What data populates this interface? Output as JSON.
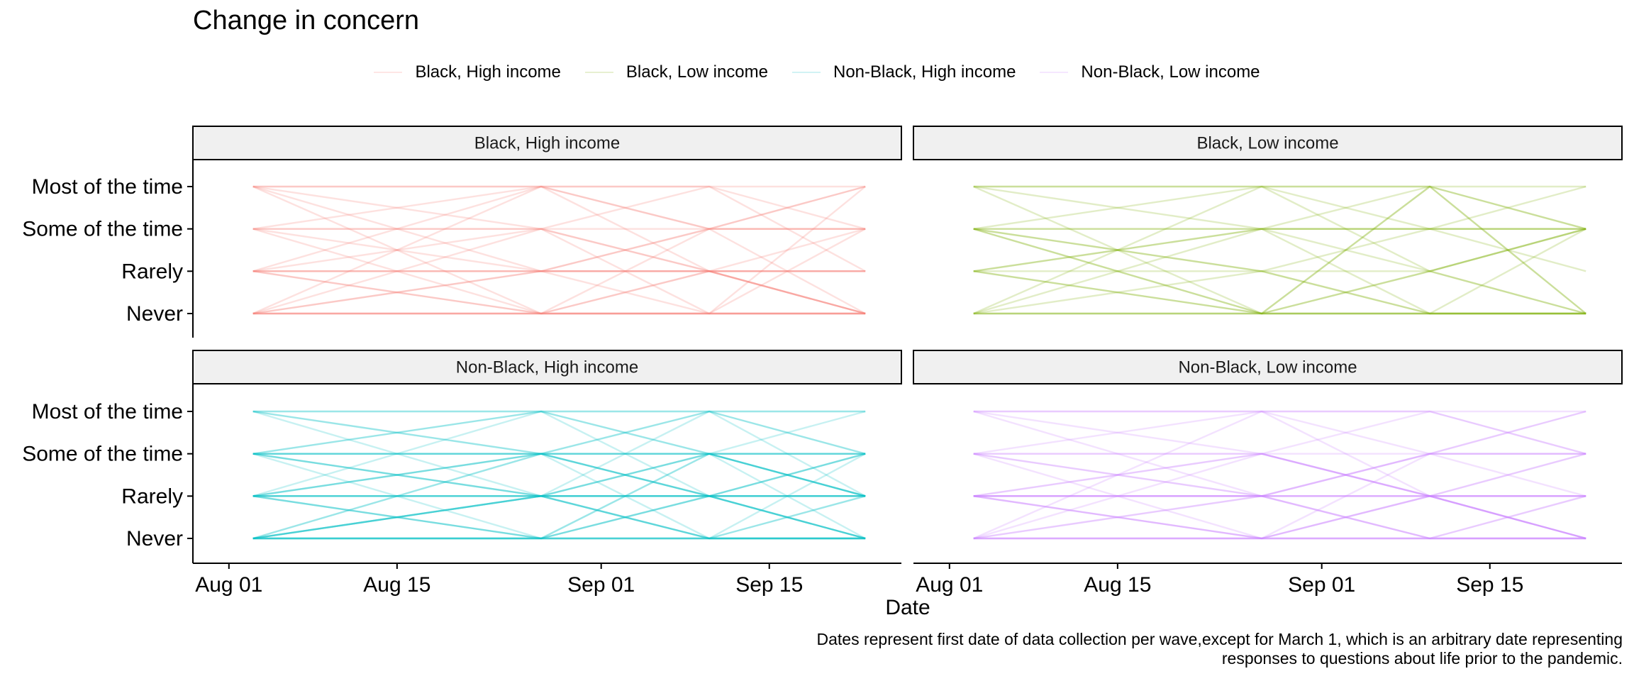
{
  "title": "Change in concern",
  "xlabel": "Date",
  "caption": "Dates represent first date of data collection per wave,except for March 1, which is an arbitrary date representing responses to questions about life prior to the pandemic.",
  "legend": [
    {
      "label": "Black, High income",
      "color": "#F8766D"
    },
    {
      "label": "Black, Low income",
      "color": "#7CAE00"
    },
    {
      "label": "Non-Black, High income",
      "color": "#00BFC4"
    },
    {
      "label": "Non-Black, Low income",
      "color": "#C77CFF"
    }
  ],
  "chart_data": {
    "type": "line",
    "facet_layout": "2x2",
    "xlabel": "Date",
    "ylabel": "",
    "x_ticks": [
      "Aug 01",
      "Aug 15",
      "Sep 01",
      "Sep 15"
    ],
    "x_tick_dates": [
      "2020-08-01",
      "2020-08-15",
      "2020-09-01",
      "2020-09-15"
    ],
    "xlim": [
      "2020-07-29",
      "2020-09-26"
    ],
    "waves": [
      "2020-08-03",
      "2020-08-27",
      "2020-09-10",
      "2020-09-23"
    ],
    "y_categories": [
      "Never",
      "Rarely",
      "Some of the time",
      "Most of the time"
    ],
    "legend_position": "top",
    "grid": false,
    "panels": [
      {
        "name": "Black, High income",
        "color": "#F8766D",
        "trajectories": [
          [
            0,
            0,
            0,
            0
          ],
          [
            0,
            0,
            0,
            0
          ],
          [
            0,
            0,
            0,
            0
          ],
          [
            1,
            1,
            1,
            1
          ],
          [
            1,
            1,
            1,
            1
          ],
          [
            2,
            2,
            2,
            2
          ],
          [
            3,
            3,
            3,
            3
          ],
          [
            1,
            0,
            1,
            0
          ],
          [
            1,
            0,
            1,
            0
          ],
          [
            0,
            3,
            3,
            2
          ],
          [
            3,
            2,
            0,
            0
          ],
          [
            1,
            1,
            2,
            3
          ],
          [
            2,
            3,
            1,
            0
          ],
          [
            0,
            1,
            2,
            3
          ],
          [
            3,
            0,
            0,
            0
          ],
          [
            1,
            3,
            2,
            0
          ],
          [
            0,
            1,
            1,
            1
          ],
          [
            2,
            0,
            0,
            2
          ],
          [
            3,
            3,
            2,
            2
          ],
          [
            0,
            2,
            3,
            1
          ],
          [
            2,
            1,
            0,
            3
          ],
          [
            1,
            2,
            1,
            0
          ],
          [
            3,
            1,
            1,
            2
          ],
          [
            0,
            0,
            2,
            2
          ],
          [
            2,
            2,
            1,
            1
          ]
        ]
      },
      {
        "name": "Black, Low income",
        "color": "#7CAE00",
        "trajectories": [
          [
            0,
            0,
            0,
            0
          ],
          [
            0,
            0,
            0,
            0
          ],
          [
            0,
            0,
            0,
            0
          ],
          [
            2,
            2,
            2,
            2
          ],
          [
            2,
            2,
            2,
            2
          ],
          [
            1,
            0,
            1,
            2
          ],
          [
            1,
            0,
            3,
            2
          ],
          [
            3,
            3,
            3,
            3
          ],
          [
            2,
            1,
            0,
            0
          ],
          [
            2,
            3,
            3,
            0
          ],
          [
            3,
            0,
            1,
            2
          ],
          [
            1,
            1,
            0,
            2
          ],
          [
            0,
            1,
            1,
            2
          ],
          [
            2,
            0,
            0,
            0
          ],
          [
            1,
            2,
            3,
            0
          ],
          [
            3,
            2,
            1,
            0
          ],
          [
            0,
            2,
            2,
            1
          ],
          [
            1,
            2,
            0,
            0
          ],
          [
            2,
            0,
            3,
            2
          ],
          [
            3,
            3,
            2,
            2
          ],
          [
            0,
            3,
            1,
            0
          ],
          [
            2,
            1,
            2,
            3
          ]
        ]
      },
      {
        "name": "Non-Black, High income",
        "color": "#00BFC4",
        "trajectories": [
          [
            0,
            0,
            0,
            0
          ],
          [
            0,
            0,
            0,
            0
          ],
          [
            0,
            0,
            0,
            0
          ],
          [
            0,
            0,
            0,
            0
          ],
          [
            1,
            1,
            1,
            1
          ],
          [
            1,
            1,
            1,
            1
          ],
          [
            1,
            1,
            1,
            1
          ],
          [
            2,
            2,
            2,
            2
          ],
          [
            2,
            2,
            2,
            2
          ],
          [
            3,
            3,
            3,
            3
          ],
          [
            1,
            0,
            1,
            0
          ],
          [
            0,
            1,
            2,
            1
          ],
          [
            2,
            1,
            0,
            0
          ],
          [
            1,
            2,
            1,
            2
          ],
          [
            0,
            0,
            1,
            1
          ],
          [
            2,
            2,
            1,
            1
          ],
          [
            1,
            0,
            0,
            1
          ],
          [
            0,
            1,
            1,
            2
          ],
          [
            2,
            1,
            2,
            1
          ],
          [
            3,
            2,
            1,
            1
          ],
          [
            0,
            2,
            3,
            2
          ],
          [
            1,
            1,
            2,
            2
          ],
          [
            2,
            0,
            1,
            0
          ],
          [
            1,
            3,
            2,
            1
          ],
          [
            0,
            1,
            0,
            0
          ],
          [
            2,
            3,
            2,
            2
          ],
          [
            3,
            3,
            1,
            0
          ],
          [
            1,
            2,
            0,
            2
          ],
          [
            0,
            1,
            3,
            1
          ],
          [
            3,
            1,
            0,
            0
          ],
          [
            2,
            2,
            3,
            3
          ],
          [
            1,
            0,
            2,
            1
          ],
          [
            0,
            2,
            1,
            0
          ],
          [
            2,
            1,
            1,
            2
          ],
          [
            1,
            1,
            0,
            1
          ],
          [
            3,
            2,
            2,
            3
          ],
          [
            0,
            0,
            2,
            1
          ],
          [
            2,
            3,
            3,
            2
          ],
          [
            1,
            2,
            2,
            0
          ],
          [
            0,
            1,
            1,
            0
          ]
        ]
      },
      {
        "name": "Non-Black, Low income",
        "color": "#C77CFF",
        "trajectories": [
          [
            0,
            0,
            0,
            0
          ],
          [
            0,
            0,
            0,
            0
          ],
          [
            0,
            0,
            0,
            0
          ],
          [
            1,
            1,
            1,
            1
          ],
          [
            1,
            1,
            1,
            1
          ],
          [
            1,
            1,
            1,
            1
          ],
          [
            2,
            2,
            2,
            2
          ],
          [
            3,
            3,
            3,
            3
          ],
          [
            1,
            0,
            1,
            0
          ],
          [
            0,
            1,
            1,
            0
          ],
          [
            1,
            2,
            1,
            1
          ],
          [
            0,
            0,
            1,
            2
          ],
          [
            1,
            1,
            0,
            0
          ],
          [
            2,
            1,
            2,
            1
          ],
          [
            1,
            0,
            0,
            1
          ],
          [
            3,
            2,
            1,
            1
          ],
          [
            2,
            3,
            2,
            2
          ],
          [
            0,
            2,
            1,
            0
          ],
          [
            1,
            1,
            2,
            2
          ],
          [
            3,
            3,
            3,
            2
          ],
          [
            2,
            1,
            0,
            0
          ],
          [
            0,
            1,
            2,
            3
          ],
          [
            1,
            2,
            3,
            2
          ],
          [
            3,
            1,
            0,
            1
          ],
          [
            2,
            0,
            1,
            2
          ],
          [
            0,
            3,
            1,
            0
          ],
          [
            1,
            0,
            2,
            3
          ],
          [
            2,
            2,
            1,
            0
          ]
        ]
      }
    ]
  }
}
